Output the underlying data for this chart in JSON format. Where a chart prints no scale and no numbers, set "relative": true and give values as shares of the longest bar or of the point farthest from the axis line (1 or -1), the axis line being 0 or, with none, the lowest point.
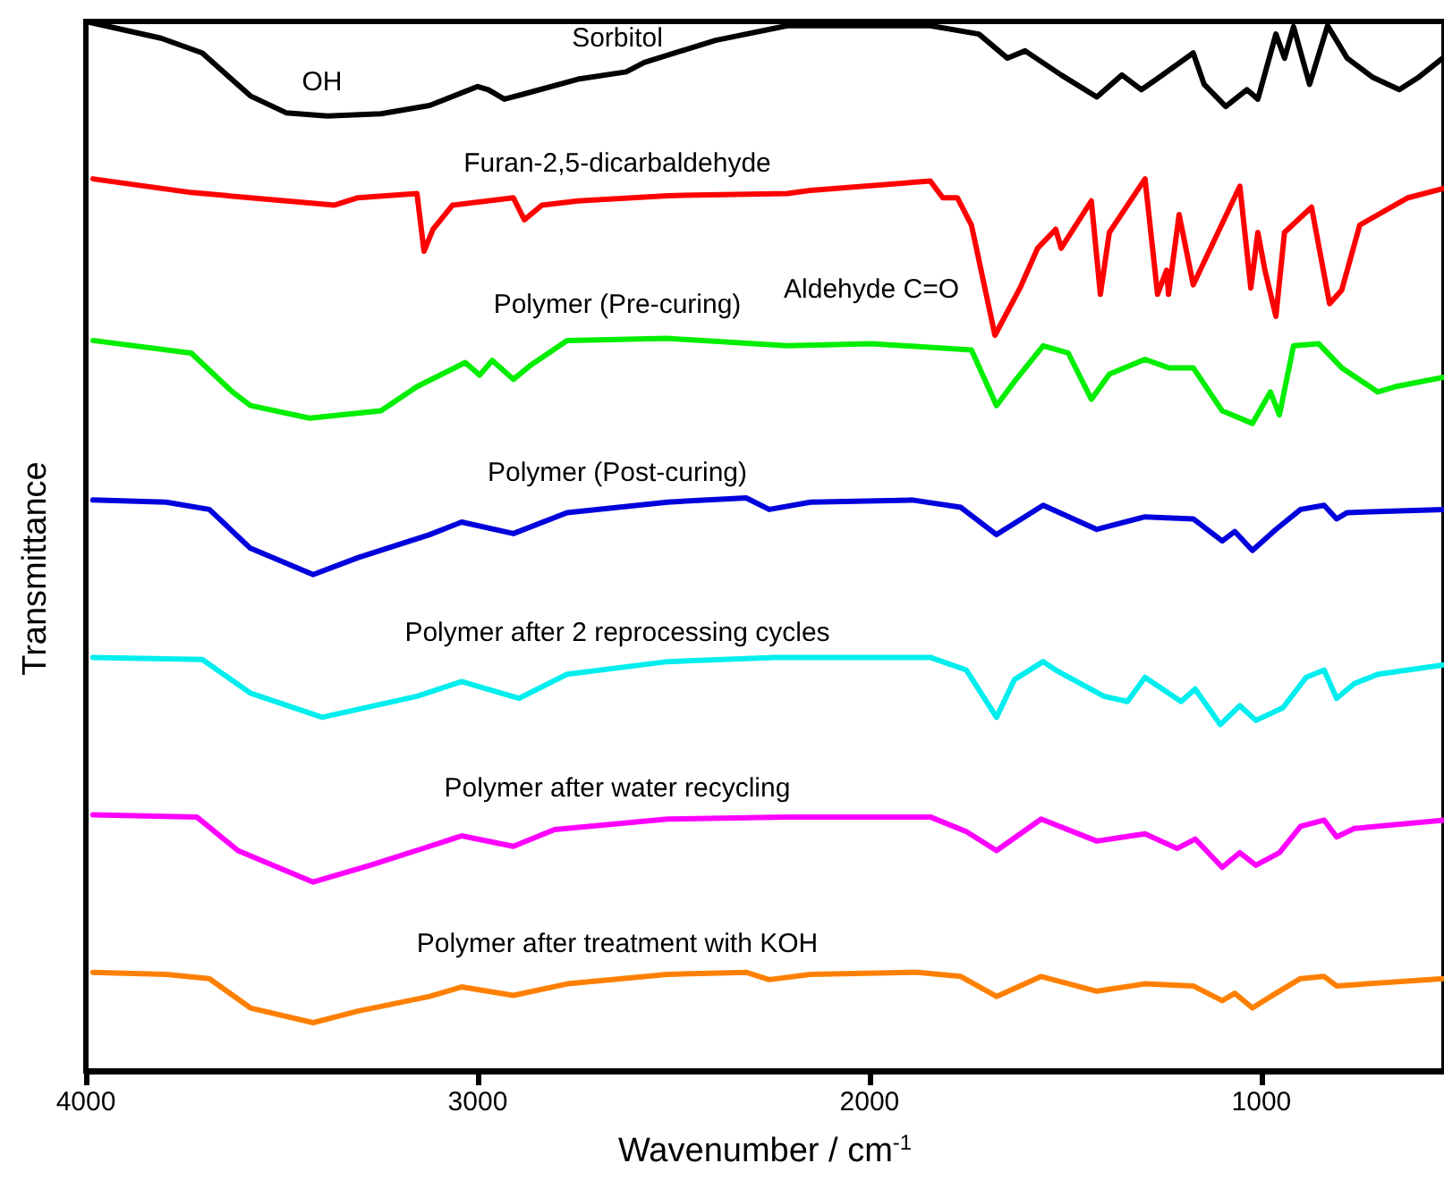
{
  "chart_data": {
    "type": "line",
    "relative": true,
    "xlabel": "Wavenumber / cm$^{-1}$",
    "ylabel": "Transmittance",
    "xlim": [
      4000,
      534
    ],
    "xticks": [
      4000,
      3000,
      2000,
      1000
    ],
    "legend": false,
    "grid": false,
    "marker": "none",
    "line_style": "solid",
    "annotations": [
      "OH",
      "Aldehyde C=O"
    ],
    "series": [
      {
        "name": "Sorbitol",
        "color": "#000000",
        "x": [
          4000,
          3808,
          3703,
          3580,
          3489,
          3384,
          3247,
          3123,
          3000,
          2973,
          2932,
          2881,
          2744,
          2621,
          2575,
          2393,
          2210,
          2151,
          1845,
          1721,
          1648,
          1603,
          1511,
          1420,
          1356,
          1306,
          1260,
          1174,
          1146,
          1091,
          1037,
          1009,
          963,
          941,
          918,
          877,
          831,
          781,
          717,
          648,
          598,
          534
        ],
        "values": [
          1.0,
          0.984,
          0.97,
          0.929,
          0.913,
          0.91,
          0.912,
          0.92,
          0.938,
          0.935,
          0.926,
          0.931,
          0.945,
          0.952,
          0.961,
          0.982,
          0.996,
          0.996,
          0.996,
          0.988,
          0.965,
          0.972,
          0.949,
          0.928,
          0.949,
          0.935,
          0.947,
          0.97,
          0.94,
          0.919,
          0.935,
          0.926,
          0.988,
          0.965,
          0.995,
          0.94,
          0.996,
          0.965,
          0.947,
          0.935,
          0.947,
          0.966
        ]
      },
      {
        "name": "Furan-2,5-dicarbaldehyde",
        "color": "#ff0000",
        "x": [
          3982,
          3731,
          3365,
          3306,
          3155,
          3137,
          3114,
          3064,
          2909,
          2881,
          2836,
          2744,
          2516,
          2210,
          2151,
          1845,
          1813,
          1776,
          1740,
          1680,
          1616,
          1571,
          1525,
          1511,
          1434,
          1411,
          1388,
          1297,
          1265,
          1242,
          1237,
          1210,
          1174,
          1055,
          1027,
          1009,
          991,
          963,
          941,
          872,
          826,
          795,
          749,
          626,
          534
        ],
        "values": [
          0.85,
          0.837,
          0.825,
          0.832,
          0.836,
          0.781,
          0.802,
          0.825,
          0.832,
          0.811,
          0.825,
          0.829,
          0.834,
          0.836,
          0.839,
          0.848,
          0.832,
          0.832,
          0.806,
          0.701,
          0.746,
          0.784,
          0.802,
          0.784,
          0.829,
          0.74,
          0.799,
          0.85,
          0.74,
          0.763,
          0.74,
          0.816,
          0.749,
          0.843,
          0.746,
          0.799,
          0.763,
          0.719,
          0.799,
          0.823,
          0.731,
          0.744,
          0.806,
          0.832,
          0.841
        ]
      },
      {
        "name": "Polymer (Pre-curing)",
        "color": "#00ee00",
        "x": [
          3982,
          3731,
          3626,
          3580,
          3429,
          3247,
          3155,
          3032,
          2995,
          2963,
          2909,
          2863,
          2772,
          2516,
          2210,
          1996,
          1740,
          1676,
          1630,
          1557,
          1493,
          1434,
          1388,
          1297,
          1237,
          1174,
          1100,
          1023,
          977,
          954,
          918,
          854,
          795,
          703,
          658,
          534
        ],
        "values": [
          0.696,
          0.684,
          0.647,
          0.634,
          0.622,
          0.629,
          0.652,
          0.675,
          0.663,
          0.677,
          0.659,
          0.673,
          0.696,
          0.698,
          0.691,
          0.693,
          0.687,
          0.634,
          0.657,
          0.691,
          0.684,
          0.64,
          0.664,
          0.678,
          0.67,
          0.67,
          0.629,
          0.617,
          0.647,
          0.625,
          0.691,
          0.693,
          0.67,
          0.647,
          0.652,
          0.661
        ]
      },
      {
        "name": "Polymer (Post-curing)",
        "color": "#0000dd",
        "x": [
          3982,
          3795,
          3685,
          3580,
          3420,
          3306,
          3123,
          3041,
          2909,
          2772,
          2516,
          2315,
          2256,
          2151,
          1890,
          1767,
          1676,
          1557,
          1420,
          1297,
          1174,
          1100,
          1068,
          1023,
          963,
          900,
          840,
          808,
          781,
          534
        ],
        "values": [
          0.544,
          0.542,
          0.535,
          0.498,
          0.473,
          0.489,
          0.511,
          0.523,
          0.512,
          0.532,
          0.542,
          0.546,
          0.535,
          0.542,
          0.544,
          0.537,
          0.511,
          0.539,
          0.516,
          0.528,
          0.526,
          0.505,
          0.514,
          0.496,
          0.516,
          0.535,
          0.539,
          0.526,
          0.532,
          0.535
        ]
      },
      {
        "name": "Polymer after 2 reprocessing cycles",
        "color": "#00eeee",
        "x": [
          3982,
          3703,
          3580,
          3397,
          3155,
          3041,
          2895,
          2772,
          2516,
          2242,
          1845,
          1753,
          1676,
          1630,
          1557,
          1525,
          1402,
          1342,
          1297,
          1205,
          1169,
          1105,
          1055,
          1014,
          945,
          886,
          840,
          808,
          763,
          703,
          534
        ],
        "values": [
          0.394,
          0.392,
          0.36,
          0.337,
          0.357,
          0.371,
          0.355,
          0.378,
          0.39,
          0.394,
          0.394,
          0.382,
          0.337,
          0.373,
          0.39,
          0.382,
          0.357,
          0.352,
          0.375,
          0.352,
          0.364,
          0.33,
          0.348,
          0.334,
          0.346,
          0.375,
          0.382,
          0.355,
          0.369,
          0.378,
          0.387
        ]
      },
      {
        "name": "Polymer after water recycling",
        "color": "#ff00ff",
        "x": [
          3982,
          3717,
          3612,
          3420,
          3274,
          3123,
          3041,
          2909,
          2804,
          2516,
          2210,
          1845,
          1753,
          1676,
          1562,
          1420,
          1297,
          1215,
          1169,
          1100,
          1055,
          1014,
          954,
          900,
          840,
          808,
          763,
          534
        ],
        "values": [
          0.244,
          0.242,
          0.21,
          0.18,
          0.196,
          0.214,
          0.224,
          0.214,
          0.23,
          0.24,
          0.242,
          0.242,
          0.228,
          0.21,
          0.24,
          0.219,
          0.226,
          0.212,
          0.221,
          0.194,
          0.208,
          0.196,
          0.208,
          0.233,
          0.239,
          0.223,
          0.231,
          0.239
        ]
      },
      {
        "name": "Polymer after treatment with KOH",
        "color": "#ff8000",
        "x": [
          3982,
          3795,
          3685,
          3580,
          3420,
          3306,
          3123,
          3041,
          2909,
          2772,
          2516,
          2315,
          2256,
          2151,
          1877,
          1767,
          1676,
          1562,
          1420,
          1297,
          1174,
          1100,
          1068,
          1023,
          963,
          900,
          840,
          808,
          534
        ],
        "values": [
          0.094,
          0.092,
          0.088,
          0.06,
          0.046,
          0.057,
          0.071,
          0.08,
          0.072,
          0.083,
          0.092,
          0.094,
          0.087,
          0.092,
          0.094,
          0.09,
          0.071,
          0.09,
          0.076,
          0.083,
          0.081,
          0.067,
          0.074,
          0.06,
          0.074,
          0.088,
          0.09,
          0.081,
          0.088
        ]
      }
    ]
  }
}
